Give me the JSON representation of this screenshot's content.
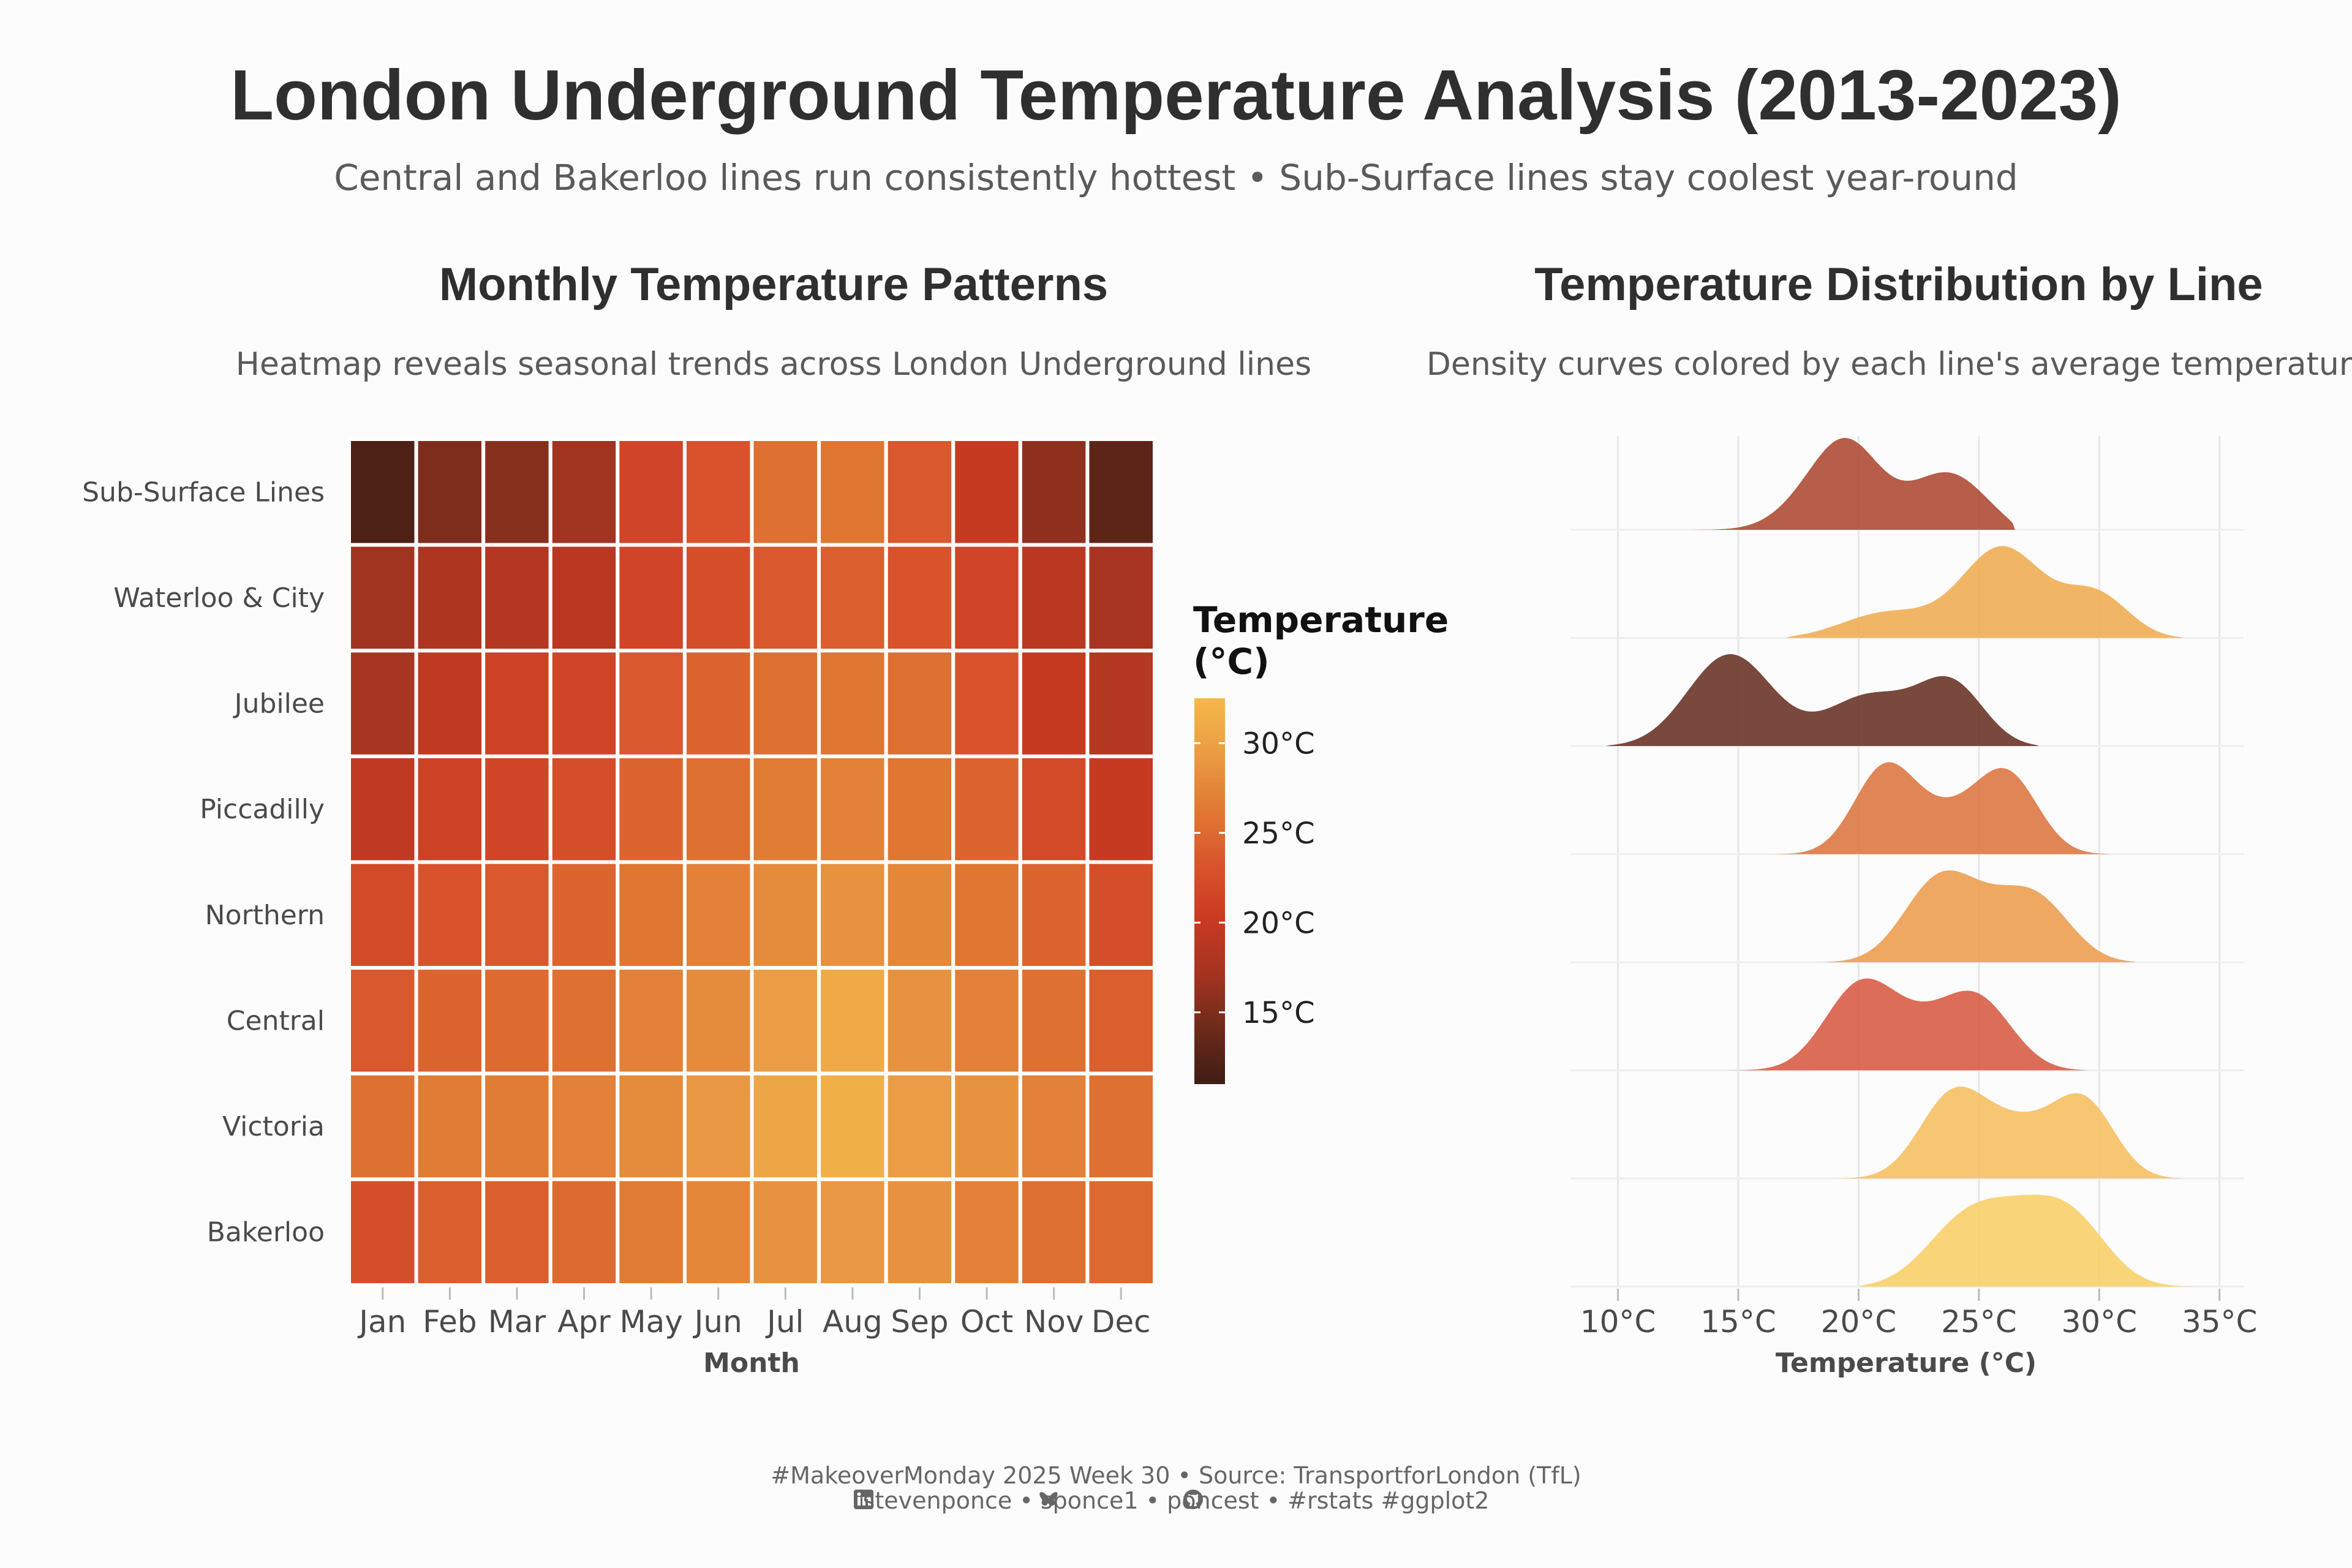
{
  "title": "London Underground Temperature Analysis (2013-2023)",
  "subtitle": "Central and Bakerloo lines run consistently hottest • Sub-Surface lines stay coolest year-round",
  "caption": {
    "line1": "#MakeoverMonday 2025 Week 30 • Source: TransportforLondon (TfL)",
    "line2": "stevenponce • sponce1 • poncest • #rstats #ggplot2",
    "icons": [
      "linkedin-icon",
      "bluesky-icon",
      "github-icon"
    ]
  },
  "colors": {
    "background": "#fcfcfc",
    "scale": [
      "#3e1d14",
      "#6d2a1a",
      "#a43421",
      "#c93a22",
      "#d9552d",
      "#e07a33",
      "#ea9c44",
      "#f4b84a"
    ]
  },
  "chart_data": [
    {
      "type": "heatmap",
      "title": "Monthly Temperature Patterns",
      "subtitle": "Heatmap reveals seasonal trends across London Underground lines",
      "xlabel": "Month",
      "ylabel": "",
      "months": [
        "Jan",
        "Feb",
        "Mar",
        "Apr",
        "May",
        "Jun",
        "Jul",
        "Aug",
        "Sep",
        "Oct",
        "Nov",
        "Dec"
      ],
      "lines": [
        "Sub-Surface Lines",
        "Waterloo & City",
        "Jubilee",
        "Piccadilly",
        "Northern",
        "Central",
        "Victoria",
        "Bakerloo"
      ],
      "values": [
        [
          12.0,
          15.0,
          15.5,
          17.0,
          21.5,
          23.0,
          25.5,
          26.0,
          23.5,
          20.0,
          16.0,
          13.0
        ],
        [
          17.0,
          18.0,
          18.5,
          19.0,
          21.5,
          22.5,
          23.5,
          24.0,
          23.0,
          21.5,
          19.0,
          17.5
        ],
        [
          17.5,
          19.5,
          21.0,
          21.5,
          23.5,
          24.5,
          25.5,
          26.0,
          25.5,
          23.0,
          20.0,
          18.5
        ],
        [
          19.5,
          21.0,
          21.5,
          22.5,
          24.5,
          25.5,
          26.5,
          27.0,
          26.0,
          24.5,
          22.0,
          20.0
        ],
        [
          22.0,
          23.0,
          23.5,
          24.5,
          26.0,
          27.0,
          28.0,
          28.5,
          27.5,
          26.0,
          24.5,
          22.5
        ],
        [
          23.5,
          24.5,
          25.0,
          25.5,
          27.0,
          28.0,
          29.5,
          31.0,
          28.5,
          27.0,
          25.5,
          24.0
        ],
        [
          25.5,
          26.5,
          26.5,
          27.0,
          28.0,
          29.0,
          30.5,
          31.5,
          29.5,
          28.5,
          27.0,
          25.5
        ],
        [
          22.5,
          24.0,
          24.0,
          25.0,
          26.5,
          27.5,
          28.5,
          29.0,
          28.5,
          27.0,
          25.5,
          25.0
        ]
      ],
      "legend": {
        "title": "Temperature (°C)",
        "title_lines": [
          "Temperature",
          "(°C)"
        ],
        "range": [
          11,
          32.5
        ],
        "breaks": [
          {
            "value": 15,
            "label": "15°C"
          },
          {
            "value": 20,
            "label": "20°C"
          },
          {
            "value": 25,
            "label": "25°C"
          },
          {
            "value": 30,
            "label": "30°C"
          }
        ]
      }
    },
    {
      "type": "area",
      "subtype": "ridgeline-density",
      "title": "Temperature Distribution by Line",
      "subtitle": "Density curves colored by each line's average temperature",
      "xlabel": "Temperature (°C)",
      "xlim": [
        8,
        36
      ],
      "xticks": [
        {
          "value": 10,
          "label": "10°C"
        },
        {
          "value": 15,
          "label": "15°C"
        },
        {
          "value": 20,
          "label": "20°C"
        },
        {
          "value": 25,
          "label": "25°C"
        },
        {
          "value": 30,
          "label": "30°C"
        },
        {
          "value": 35,
          "label": "35°C"
        }
      ],
      "grid": true,
      "series": [
        {
          "line": "Sub-Surface Lines",
          "color": "#b0503a",
          "x_range": [
            12,
            26.5
          ],
          "peaks": [
            {
              "mu": 17.5,
              "sigma": 1.3,
              "h": 0.15
            },
            {
              "mu": 19.5,
              "sigma": 1.4,
              "h": 0.85
            },
            {
              "mu": 24.0,
              "sigma": 1.7,
              "h": 0.7
            }
          ]
        },
        {
          "line": "Waterloo & City",
          "color": "#f0b058",
          "x_range": [
            17,
            33.5
          ],
          "peaks": [
            {
              "mu": 21.0,
              "sigma": 2.0,
              "h": 0.28
            },
            {
              "mu": 26.0,
              "sigma": 1.7,
              "h": 0.88
            },
            {
              "mu": 30.0,
              "sigma": 1.4,
              "h": 0.5
            }
          ]
        },
        {
          "line": "Jubilee",
          "color": "#6e3a2e",
          "x_range": [
            9.5,
            27.5
          ],
          "peaks": [
            {
              "mu": 14.5,
              "sigma": 1.8,
              "h": 0.75
            },
            {
              "mu": 20.5,
              "sigma": 1.8,
              "h": 0.38
            },
            {
              "mu": 24.0,
              "sigma": 1.4,
              "h": 0.55
            }
          ]
        },
        {
          "line": "Piccadilly",
          "color": "#dd7b46",
          "x_range": [
            16.5,
            30.5
          ],
          "peaks": [
            {
              "mu": 21.0,
              "sigma": 1.3,
              "h": 0.75
            },
            {
              "mu": 26.3,
              "sigma": 1.3,
              "h": 0.68
            },
            {
              "mu": 23.8,
              "sigma": 1.5,
              "h": 0.3
            }
          ]
        },
        {
          "line": "Northern",
          "color": "#eda155",
          "x_range": [
            18.5,
            31.5
          ],
          "peaks": [
            {
              "mu": 23.2,
              "sigma": 1.5,
              "h": 0.82
            },
            {
              "mu": 27.5,
              "sigma": 1.5,
              "h": 0.66
            },
            {
              "mu": 25.3,
              "sigma": 1.5,
              "h": 0.3
            }
          ]
        },
        {
          "line": "Central",
          "color": "#d9614a",
          "x_range": [
            14.5,
            29.5
          ],
          "peaks": [
            {
              "mu": 20.0,
              "sigma": 1.5,
              "h": 0.85
            },
            {
              "mu": 25.0,
              "sigma": 1.5,
              "h": 0.75
            },
            {
              "mu": 22.5,
              "sigma": 1.4,
              "h": 0.28
            }
          ]
        },
        {
          "line": "Victoria",
          "color": "#f5c167",
          "x_range": [
            19,
            33.5
          ],
          "peaks": [
            {
              "mu": 23.8,
              "sigma": 1.4,
              "h": 0.85
            },
            {
              "mu": 29.5,
              "sigma": 1.3,
              "h": 0.8
            },
            {
              "mu": 26.7,
              "sigma": 1.6,
              "h": 0.5
            }
          ]
        },
        {
          "line": "Bakerloo",
          "color": "#f8d06d",
          "x_range": [
            20,
            34
          ],
          "peaks": [
            {
              "mu": 24.5,
              "sigma": 1.8,
              "h": 0.85
            },
            {
              "mu": 28.8,
              "sigma": 1.6,
              "h": 0.82
            },
            {
              "mu": 26.7,
              "sigma": 1.4,
              "h": 0.3
            }
          ]
        }
      ]
    }
  ]
}
